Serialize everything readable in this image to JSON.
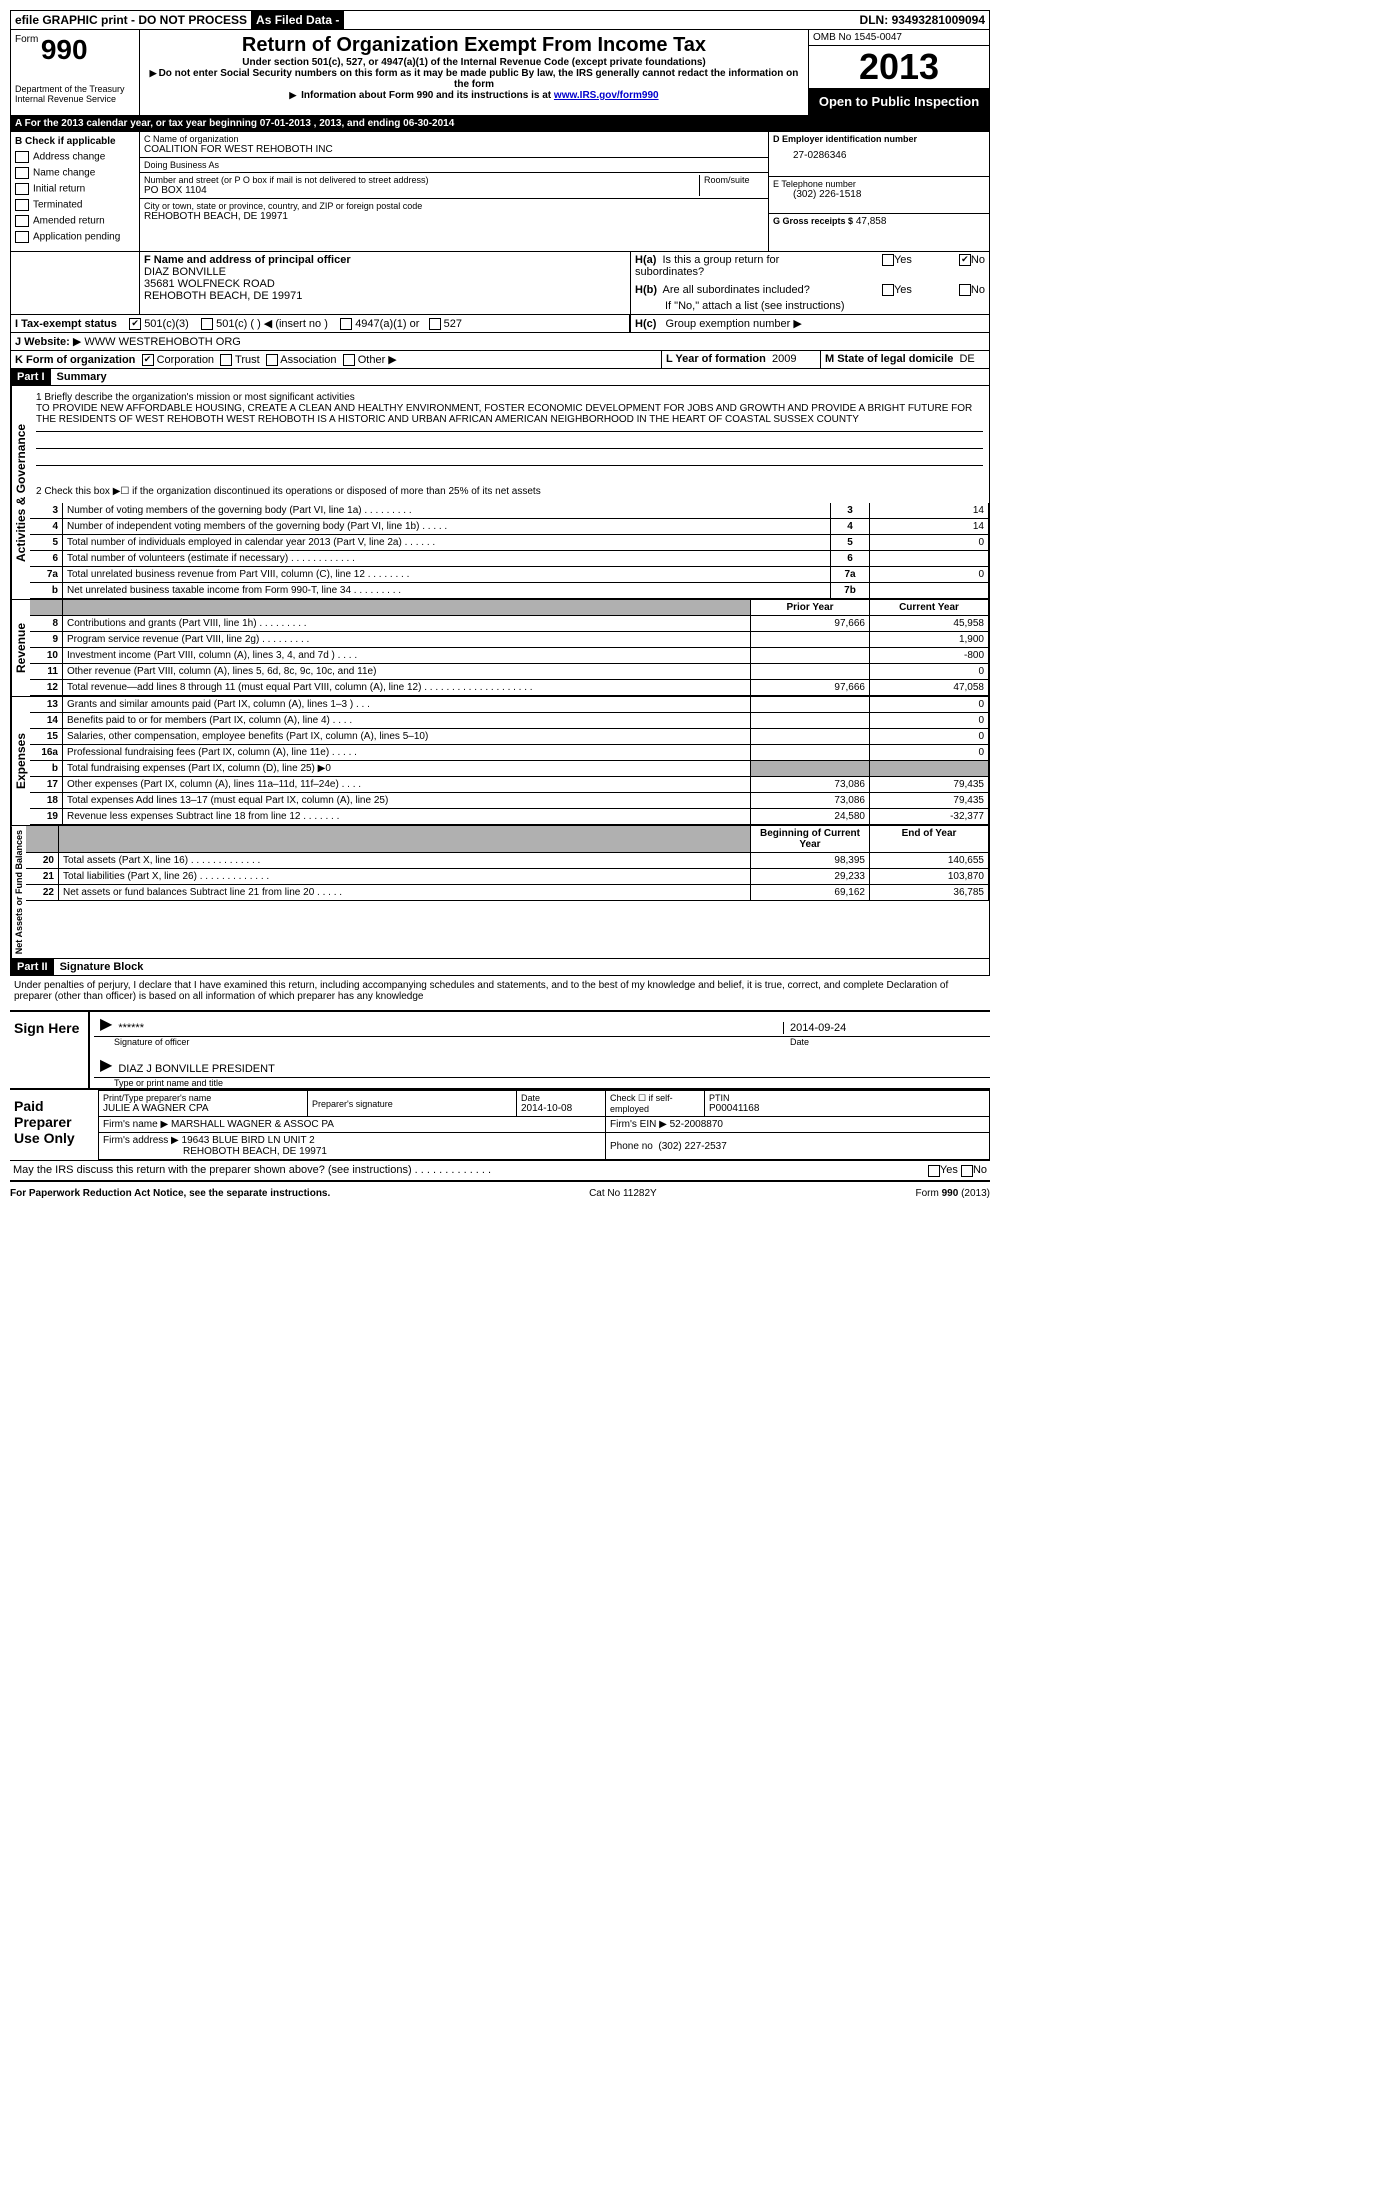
{
  "topbar": {
    "efile": "efile GRAPHIC print - DO NOT PROCESS",
    "asfiled": "As Filed Data -",
    "dln_label": "DLN:",
    "dln": "93493281009094"
  },
  "header": {
    "form_word": "Form",
    "form_num": "990",
    "dept1": "Department of the Treasury",
    "dept2": "Internal Revenue Service",
    "title": "Return of Organization Exempt From Income Tax",
    "sub1": "Under section 501(c), 527, or 4947(a)(1) of the Internal Revenue Code (except private foundations)",
    "sub2": "Do not enter Social Security numbers on this form as it may be made public  By law, the IRS generally cannot redact the information on the form",
    "sub3_pre": "Information about Form 990 and its instructions is at ",
    "sub3_link": "www.IRS.gov/form990",
    "omb": "OMB No  1545-0047",
    "year": "2013",
    "open": "Open to Public Inspection"
  },
  "section_a": {
    "text_pre": "A  For the 2013 calendar year, or tax year beginning ",
    "begin": "07-01-2013",
    "mid": " , 2013, and ending ",
    "end": "06-30-2014"
  },
  "col_b": {
    "header": "B  Check if applicable",
    "items": [
      "Address change",
      "Name change",
      "Initial return",
      "Terminated",
      "Amended return",
      "Application pending"
    ]
  },
  "col_c": {
    "name_label": "C Name of organization",
    "name": "COALITION FOR WEST REHOBOTH INC",
    "dba_label": "Doing Business As",
    "dba": "",
    "street_label": "Number and street (or P O  box if mail is not delivered to street address)",
    "room_label": "Room/suite",
    "street": "PO BOX 1104",
    "city_label": "City or town, state or province, country, and ZIP or foreign postal code",
    "city": "REHOBOTH BEACH, DE  19971"
  },
  "col_d": {
    "ein_label": "D Employer identification number",
    "ein": "27-0286346",
    "phone_label": "E Telephone number",
    "phone": "(302) 226-1518",
    "gross_label": "G Gross receipts $",
    "gross": "47,858"
  },
  "f": {
    "label": "F  Name and address of principal officer",
    "name": "DIAZ BONVILLE",
    "addr1": "35681 WOLFNECK ROAD",
    "addr2": "REHOBOTH BEACH, DE  19971"
  },
  "h": {
    "a_label": "H(a)  Is this a group return for subordinates?",
    "b_label": "H(b)  Are all subordinates included?",
    "b_note": "If \"No,\" attach a list  (see instructions)",
    "c_label": "H(c)   Group exemption number",
    "yes": "Yes",
    "no": "No"
  },
  "i": {
    "label": "I   Tax-exempt status",
    "o501c3": "501(c)(3)",
    "o501c": "501(c) (   )",
    "insert": "(insert no )",
    "o4947": "4947(a)(1) or",
    "o527": "527"
  },
  "j": {
    "label": "J   Website:",
    "value": "WWW WESTREHOBOTH ORG"
  },
  "k": {
    "label": "K Form of organization",
    "corp": "Corporation",
    "trust": "Trust",
    "assoc": "Association",
    "other": "Other"
  },
  "l": {
    "label": "L Year of formation",
    "value": "2009"
  },
  "m": {
    "label": "M State of legal domicile",
    "value": "DE"
  },
  "part1": {
    "label": "Part I",
    "title": "Summary"
  },
  "mission": {
    "line1_label": "1   Briefly describe the organization's mission or most significant activities",
    "text": "TO PROVIDE NEW AFFORDABLE HOUSING, CREATE A CLEAN AND HEALTHY ENVIRONMENT, FOSTER ECONOMIC DEVELOPMENT FOR JOBS AND GROWTH AND PROVIDE A BRIGHT FUTURE FOR THE RESIDENTS OF WEST REHOBOTH  WEST REHOBOTH IS A HISTORIC AND URBAN AFRICAN AMERICAN NEIGHBORHOOD IN THE HEART OF COASTAL SUSSEX COUNTY",
    "line2": "2   Check this box ▶☐ if the organization discontinued its operations or disposed of more than 25% of its net assets"
  },
  "vlabels": {
    "gov": "Activities & Governance",
    "rev": "Revenue",
    "exp": "Expenses",
    "net": "Net Assets or Fund Balances"
  },
  "govlines": [
    {
      "n": "3",
      "t": "Number of voting members of the governing body (Part VI, line 1a)   .    .    .    .    .    .    .    .    .",
      "c": "3",
      "v": "14"
    },
    {
      "n": "4",
      "t": "Number of independent voting members of the governing body (Part VI, line 1b)   .    .    .    .    .",
      "c": "4",
      "v": "14"
    },
    {
      "n": "5",
      "t": "Total number of individuals employed in calendar year 2013 (Part V, line 2a)   .    .    .    .    .    .",
      "c": "5",
      "v": "0"
    },
    {
      "n": "6",
      "t": "Total number of volunteers (estimate if necessary)   .    .    .    .    .    .    .    .    .    .    .    .",
      "c": "6",
      "v": ""
    },
    {
      "n": "7a",
      "t": "Total unrelated business revenue from Part VIII, column (C), line 12   .    .    .    .    .    .    .    .",
      "c": "7a",
      "v": "0"
    },
    {
      "n": "b",
      "t": "Net unrelated business taxable income from Form 990-T, line 34   .    .    .    .    .    .    .    .    .",
      "c": "7b",
      "v": ""
    }
  ],
  "twocol_header": {
    "prior": "Prior Year",
    "current": "Current Year"
  },
  "revlines": [
    {
      "n": "8",
      "t": "Contributions and grants (Part VIII, line 1h)    .    .    .    .    .    .    .    .    .",
      "p": "97,666",
      "c": "45,958"
    },
    {
      "n": "9",
      "t": "Program service revenue (Part VIII, line 2g)   .    .    .    .    .    .    .    .    .",
      "p": "",
      "c": "1,900"
    },
    {
      "n": "10",
      "t": "Investment income (Part VIII, column (A), lines 3, 4, and 7d )   .    .    .    .",
      "p": "",
      "c": "-800"
    },
    {
      "n": "11",
      "t": "Other revenue (Part VIII, column (A), lines 5, 6d, 8c, 9c, 10c, and 11e)",
      "p": "",
      "c": "0"
    },
    {
      "n": "12",
      "t": "Total revenue—add lines 8 through 11 (must equal Part VIII, column (A), line 12)   .    .    .    .    .    .    .    .    .    .    .    .    .    .    .    .    .    .    .    .",
      "p": "97,666",
      "c": "47,058"
    }
  ],
  "explines": [
    {
      "n": "13",
      "t": "Grants and similar amounts paid (Part IX, column (A), lines 1–3 )   .    .    .",
      "p": "",
      "c": "0"
    },
    {
      "n": "14",
      "t": "Benefits paid to or for members (Part IX, column (A), line 4)   .    .    .    .",
      "p": "",
      "c": "0"
    },
    {
      "n": "15",
      "t": "Salaries, other compensation, employee benefits (Part IX, column (A), lines 5–10)",
      "p": "",
      "c": "0"
    },
    {
      "n": "16a",
      "t": "Professional fundraising fees (Part IX, column (A), line 11e)   .    .    .    .    .",
      "p": "",
      "c": "0"
    },
    {
      "n": "b",
      "t": "Total fundraising expenses (Part IX, column (D), line 25)  ▶0",
      "p": "gray",
      "c": "gray"
    },
    {
      "n": "17",
      "t": "Other expenses (Part IX, column (A), lines 11a–11d, 11f–24e)   .    .    .    .",
      "p": "73,086",
      "c": "79,435"
    },
    {
      "n": "18",
      "t": "Total expenses  Add lines 13–17 (must equal Part IX, column (A), line 25)",
      "p": "73,086",
      "c": "79,435"
    },
    {
      "n": "19",
      "t": "Revenue less expenses  Subtract line 18 from line 12    .    .    .    .    .    .    .",
      "p": "24,580",
      "c": "-32,377"
    }
  ],
  "net_header": {
    "begin": "Beginning of Current Year",
    "end": "End of Year"
  },
  "netlines": [
    {
      "n": "20",
      "t": "Total assets (Part X, line 16)    .    .    .    .    .    .    .    .    .    .    .    .    .",
      "p": "98,395",
      "c": "140,655"
    },
    {
      "n": "21",
      "t": "Total liabilities (Part X, line 26)   .    .    .    .    .    .    .    .    .    .    .    .    .",
      "p": "29,233",
      "c": "103,870"
    },
    {
      "n": "22",
      "t": "Net assets or fund balances  Subtract line 21 from line 20   .    .    .    .    .",
      "p": "69,162",
      "c": "36,785"
    }
  ],
  "part2": {
    "label": "Part II",
    "title": "Signature Block"
  },
  "perjury": "Under penalties of perjury, I declare that I have examined this return, including accompanying schedules and statements, and to the best of my knowledge and belief, it is true, correct, and complete  Declaration of preparer (other than officer) is based on all information of which preparer has any knowledge",
  "sign": {
    "here": "Sign Here",
    "stars": "******",
    "sig_label": "Signature of officer",
    "date": "2014-09-24",
    "date_label": "Date",
    "name": "DIAZ J BONVILLE PRESIDENT",
    "name_label": "Type or print name and title"
  },
  "prep": {
    "label": "Paid Preparer Use Only",
    "h_name": "Print/Type preparer's name",
    "name": "JULIE A WAGNER CPA",
    "h_sig": "Preparer's signature",
    "h_date": "Date",
    "date": "2014-10-08",
    "h_self": "Check ☐ if self-employed",
    "h_ptin": "PTIN",
    "ptin": "P00041168",
    "firm_label": "Firm's name      ▶",
    "firm": "MARSHALL WAGNER & ASSOC PA",
    "ein_label": "Firm's EIN ▶",
    "ein": "52-2008870",
    "addr_label": "Firm's address ▶",
    "addr1": "19643 BLUE BIRD LN UNIT 2",
    "addr2": "REHOBOTH BEACH, DE  19971",
    "phone_label": "Phone no",
    "phone": "(302) 227-2537"
  },
  "discuss": "May the IRS discuss this return with the preparer shown above? (see instructions)    .    .    .    .    .    .    .    .    .    .    .    .    .",
  "footer": {
    "left": "For Paperwork Reduction Act Notice, see the separate instructions.",
    "mid": "Cat No  11282Y",
    "right": "Form 990 (2013)"
  }
}
